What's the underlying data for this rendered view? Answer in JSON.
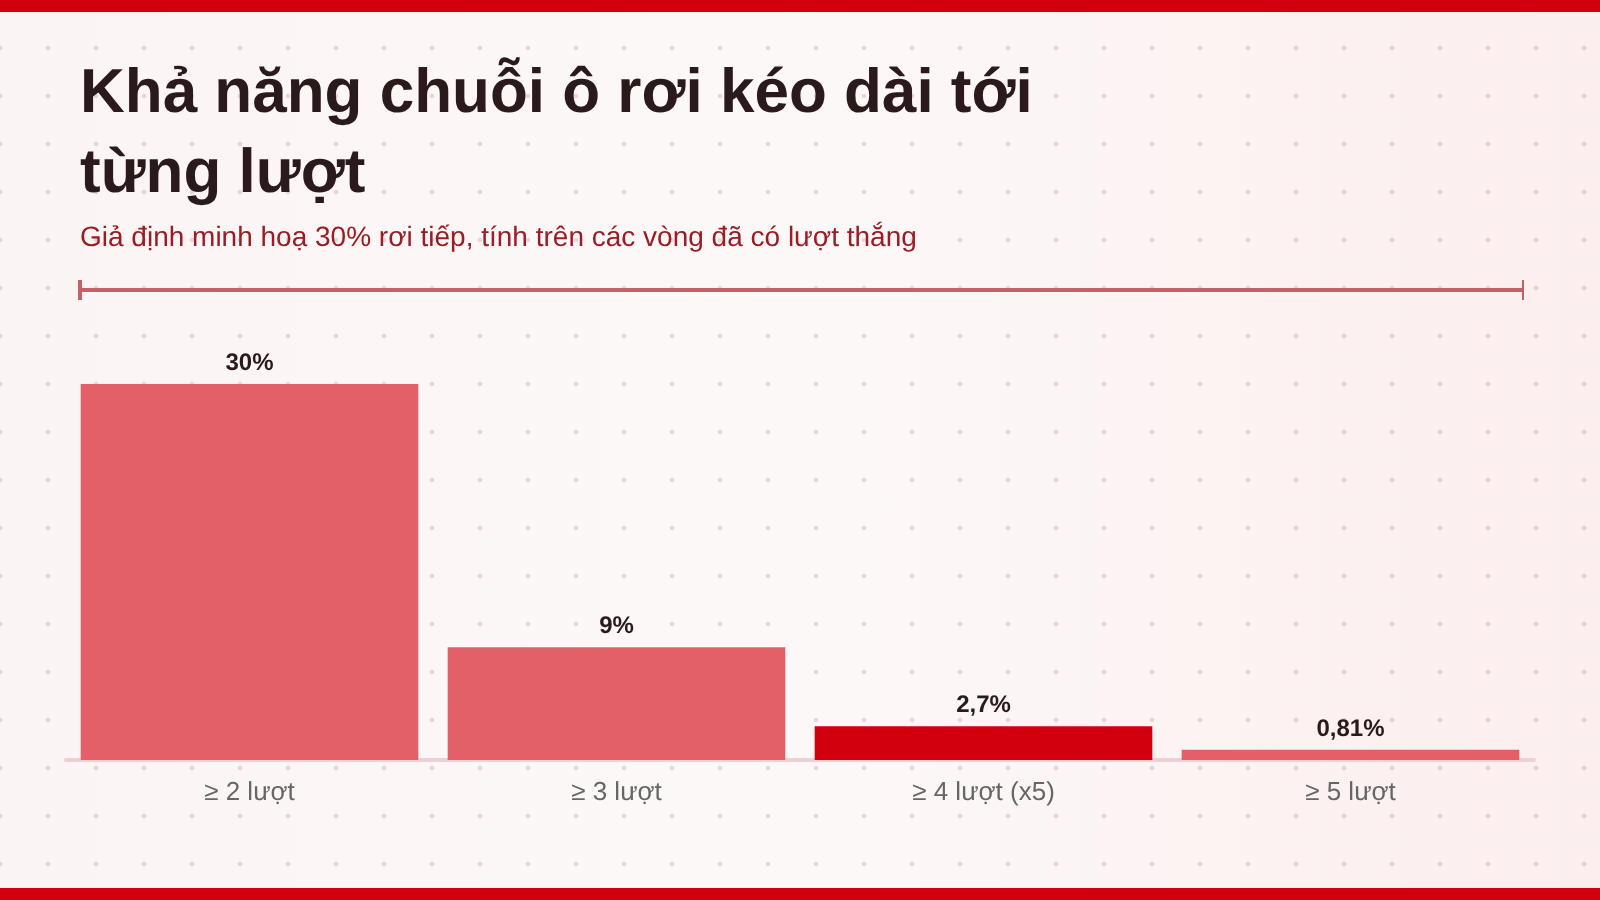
{
  "chart_data": {
    "type": "bar",
    "title": "Khả năng chuỗi ô rơi kéo dài tới từng lượt",
    "subtitle": "Giả định minh hoạ 30% rơi tiếp, tính trên các vòng đã có lượt thắng",
    "categories": [
      "≥ 2 lượt",
      "≥ 3 lượt",
      "≥ 4 lượt (x5)",
      "≥ 5 lượt"
    ],
    "values": [
      30,
      9,
      2.7,
      0.81
    ],
    "colors": [
      "#e36068",
      "#e36068",
      "#d0000f",
      "#e36068"
    ],
    "value_labels": [
      "30%",
      "9%",
      "2,7%",
      "0,81%"
    ]
  }
}
